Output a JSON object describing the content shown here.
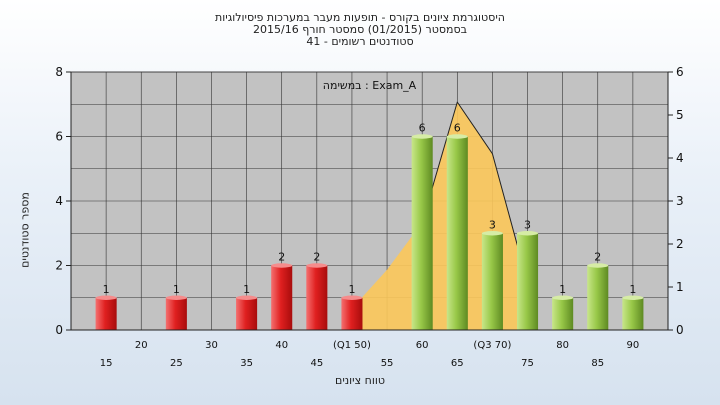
{
  "title_lines": [
    "היסטוגרמת ציונים בקורס - תופעות מעבר במערכות פיסיולוגיות",
    "בסמסטר  (01/2015)  סמסטר חורף 2015/16",
    "סטודנטים רשומים - 41"
  ],
  "chart_data": {
    "type": "bar",
    "title": "היסטוגרמת ציונים בקורס - תופעות מעבר במערכות פיסיולוגיות",
    "subtitle": "בסמסטר  (01/2015)  סמסטר חורף 2015/16",
    "registered": "סטודנטים רשומים - 41",
    "annotation": "במשימה : Exam_A",
    "xlabel": "טווח ציונים",
    "ylabel": "מספר סטודנטים",
    "ylim": [
      0,
      8
    ],
    "y_ticks": [
      "0",
      "2",
      "4",
      "6",
      "8"
    ],
    "y2lim": [
      0,
      6
    ],
    "y2_ticks": [
      "0",
      "1",
      "2",
      "3",
      "4",
      "5",
      "6"
    ],
    "grid": true,
    "x_tick_labels": [
      "15",
      "20",
      "25",
      "30",
      "35",
      "40",
      "45",
      "(Q1 50)",
      "55",
      "60",
      "65",
      "(Q3 70)",
      "75",
      "80",
      "85",
      "90"
    ],
    "bars": [
      {
        "label": "15",
        "value": 1,
        "value_label": "1",
        "color": "red"
      },
      {
        "label": "25",
        "value": 1,
        "value_label": "1",
        "color": "red"
      },
      {
        "label": "35",
        "value": 1,
        "value_label": "1",
        "color": "red"
      },
      {
        "label": "40",
        "value": 2,
        "value_label": "2",
        "color": "red"
      },
      {
        "label": "45",
        "value": 2,
        "value_label": "2",
        "color": "red"
      },
      {
        "label": "(Q1 50)",
        "value": 1,
        "value_label": "1",
        "color": "red"
      },
      {
        "label": "60",
        "value": 6,
        "value_label": "6",
        "color": "green"
      },
      {
        "label": "65",
        "value": 6,
        "value_label": "6",
        "color": "green"
      },
      {
        "label": "(Q3 70)",
        "value": 3,
        "value_label": "3",
        "color": "green"
      },
      {
        "label": "75",
        "value": 3,
        "value_label": "3",
        "color": "green"
      },
      {
        "label": "80",
        "value": 1,
        "value_label": "1",
        "color": "green"
      },
      {
        "label": "85",
        "value": 2,
        "value_label": "2",
        "color": "green"
      },
      {
        "label": "90",
        "value": 1,
        "value_label": "1",
        "color": "green"
      }
    ],
    "distribution_area": {
      "color": "#fcc85a",
      "x": [
        "(Q1 50)",
        "55",
        "60",
        "65",
        "(Q3 70)",
        "75"
      ],
      "y2": [
        0.5,
        1.4,
        2.5,
        5.3,
        4.1,
        1.1
      ]
    },
    "colors": {
      "plot_bg": "#c2c2c2",
      "red_bar": "#e02020",
      "green_bar": "#98c848"
    }
  }
}
